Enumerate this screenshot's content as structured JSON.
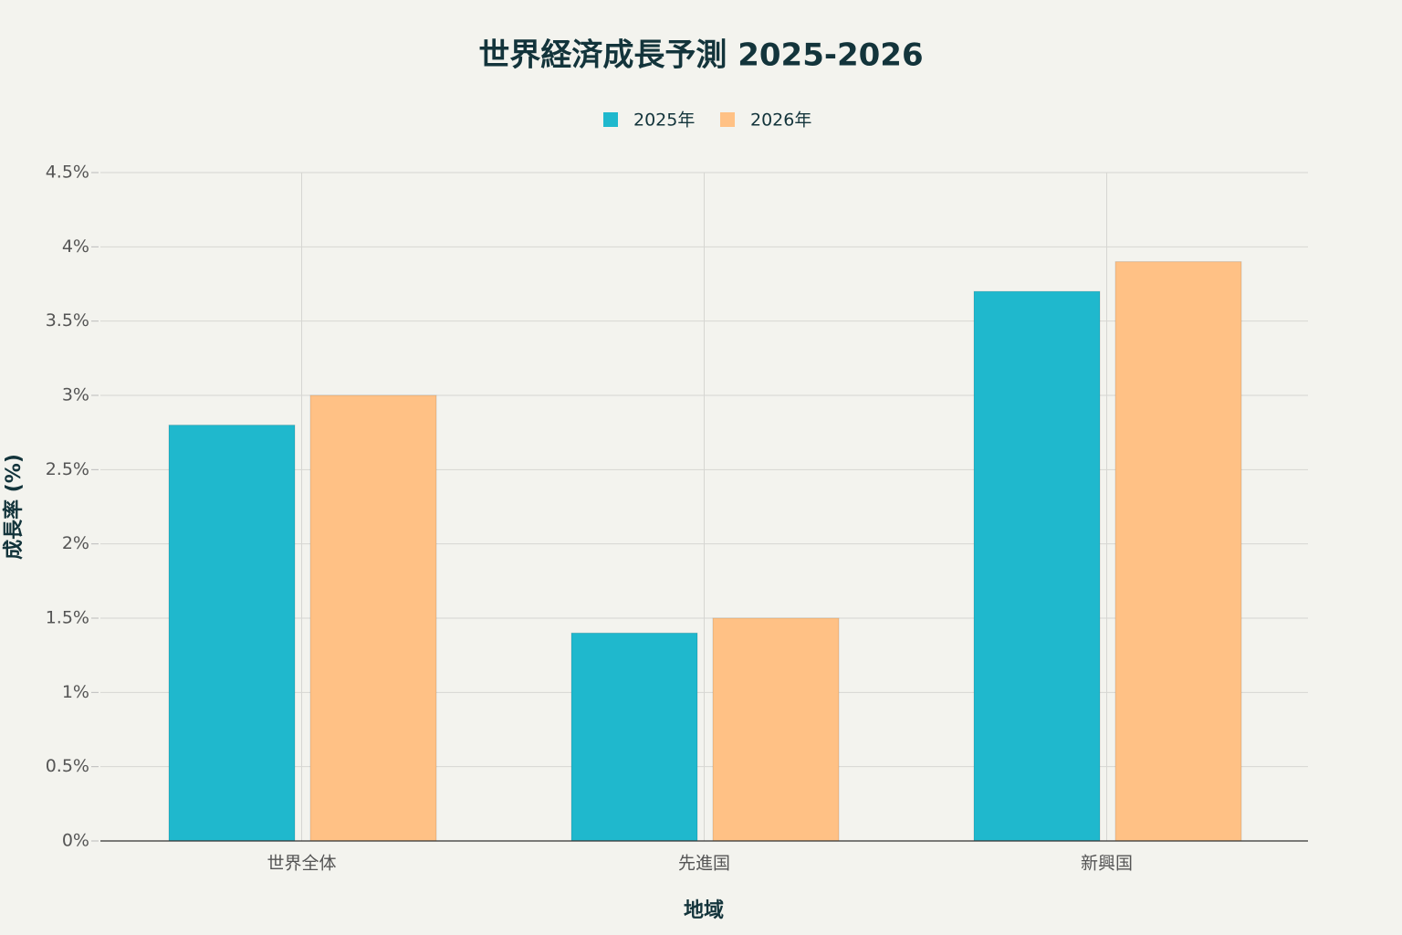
{
  "chart_data": {
    "type": "bar",
    "title": "世界経済成長予測 2025-2026",
    "x_label": "地域",
    "y_label": "成長率 (%)",
    "categories": [
      "世界全体",
      "先進国",
      "新興国"
    ],
    "series": [
      {
        "name": "2025年",
        "color": "#1fb8cd",
        "values": [
          2.8,
          1.4,
          3.7
        ]
      },
      {
        "name": "2026年",
        "color": "#ffc185",
        "values": [
          3.0,
          1.5,
          3.9
        ]
      }
    ],
    "ylim": [
      0,
      4.5
    ],
    "yticks": [
      {
        "value": 0,
        "label": "0%"
      },
      {
        "value": 0.5,
        "label": "0.5%"
      },
      {
        "value": 1,
        "label": "1%"
      },
      {
        "value": 1.5,
        "label": "1.5%"
      },
      {
        "value": 2,
        "label": "2%"
      },
      {
        "value": 2.5,
        "label": "2.5%"
      },
      {
        "value": 3,
        "label": "3%"
      },
      {
        "value": 3.5,
        "label": "3.5%"
      },
      {
        "value": 4,
        "label": "4%"
      },
      {
        "value": 4.5,
        "label": "4.5%"
      }
    ],
    "grid": true,
    "legend": "top"
  }
}
